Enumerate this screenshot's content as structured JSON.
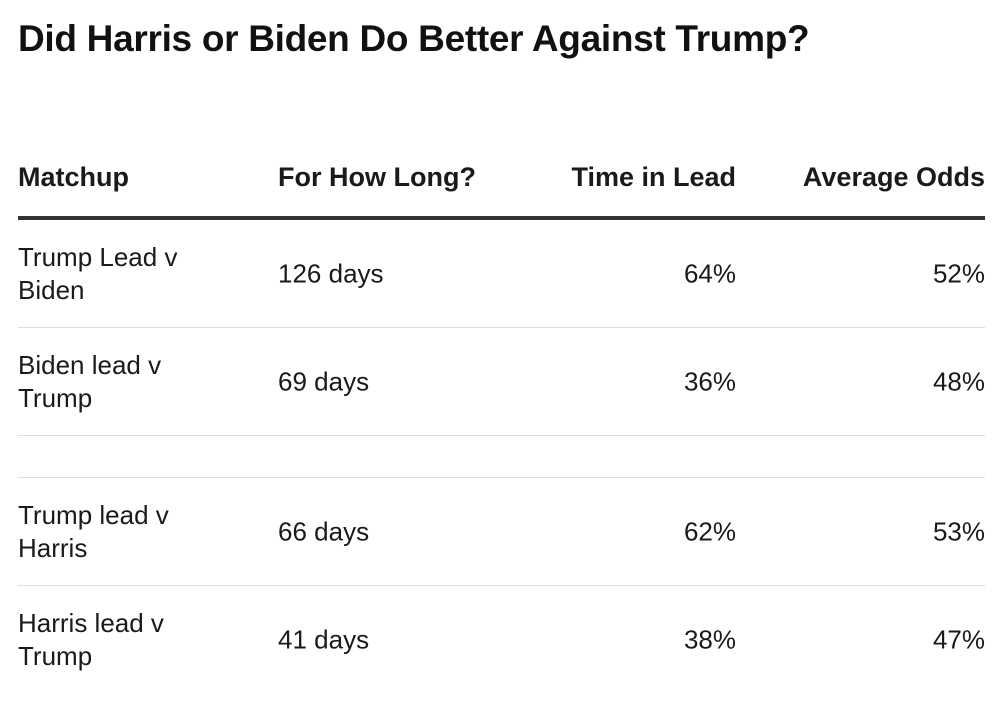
{
  "title": "Did Harris or Biden Do Better Against Trump?",
  "columns": {
    "matchup": "Matchup",
    "how_long": "For How Long?",
    "time_in_lead": "Time in Lead",
    "average_odds": "Average Odds"
  },
  "rows": [
    {
      "matchup": "Trump Lead v Biden",
      "how_long": "126 days",
      "time_in_lead": "64%",
      "average_odds": "52%"
    },
    {
      "matchup": "Biden lead v Trump",
      "how_long": "69 days",
      "time_in_lead": "36%",
      "average_odds": "48%"
    },
    {
      "matchup": "Trump lead v Harris",
      "how_long": "66 days",
      "time_in_lead": "62%",
      "average_odds": "53%"
    },
    {
      "matchup": "Harris lead v Trump",
      "how_long": "41 days",
      "time_in_lead": "38%",
      "average_odds": "47%"
    }
  ]
}
